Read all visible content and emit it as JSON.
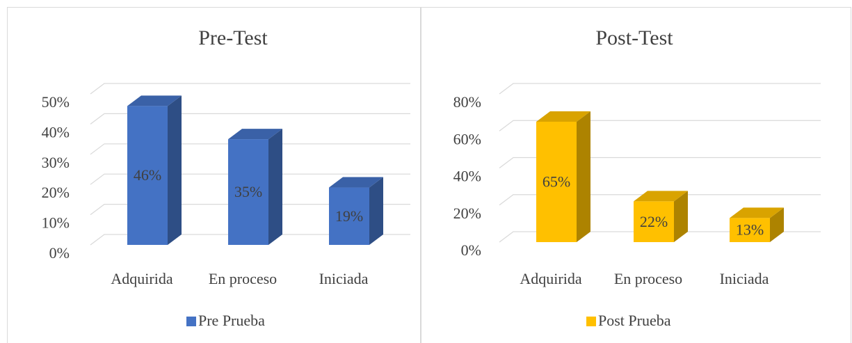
{
  "chart_data": [
    {
      "type": "bar3d",
      "title": "Pre-Test",
      "categories": [
        "Adquirida",
        "En proceso",
        "Iniciada"
      ],
      "series": [
        {
          "name": "Pre Prueba",
          "color": "#4472c4",
          "values": [
            46,
            35,
            19
          ],
          "value_labels": [
            "46%",
            "35%",
            "19%"
          ]
        }
      ],
      "ylim": [
        0,
        50
      ],
      "yticks": [
        {
          "value": 0,
          "label": "0%"
        },
        {
          "value": 10,
          "label": "10%"
        },
        {
          "value": 20,
          "label": "20%"
        },
        {
          "value": 30,
          "label": "30%"
        },
        {
          "value": 40,
          "label": "40%"
        },
        {
          "value": 50,
          "label": "50%"
        }
      ],
      "grid": true,
      "legend": "bottom"
    },
    {
      "type": "bar3d",
      "title": "Post-Test",
      "categories": [
        "Adquirida",
        "En proceso",
        "Iniciada"
      ],
      "series": [
        {
          "name": "Post Prueba",
          "color": "#ffc000",
          "values": [
            65,
            22,
            13
          ],
          "value_labels": [
            "65%",
            "22%",
            "13%"
          ]
        }
      ],
      "ylim": [
        0,
        80
      ],
      "yticks": [
        {
          "value": 0,
          "label": "0%"
        },
        {
          "value": 20,
          "label": "20%"
        },
        {
          "value": 40,
          "label": "40%"
        },
        {
          "value": 60,
          "label": "60%"
        },
        {
          "value": 80,
          "label": "80%"
        }
      ],
      "grid": true,
      "legend": "bottom"
    }
  ]
}
